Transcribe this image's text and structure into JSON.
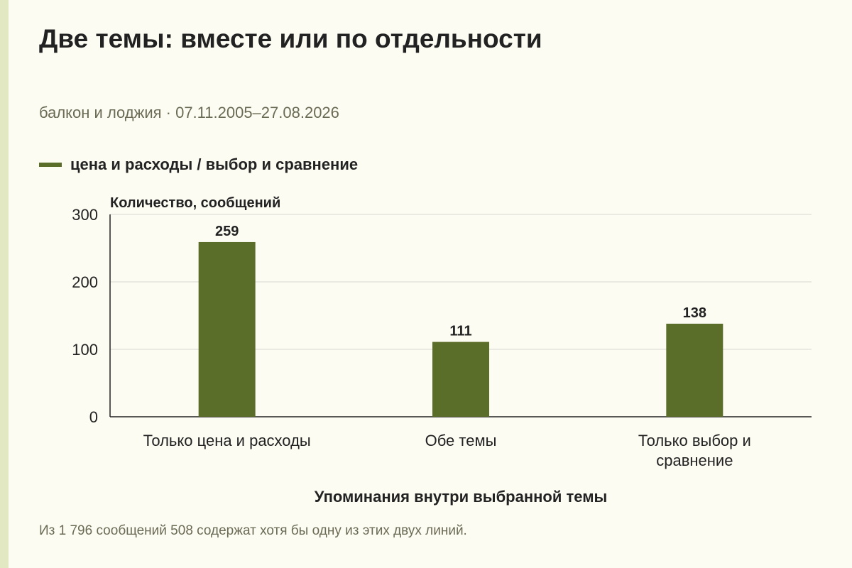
{
  "title": "Две темы: вместе или по отдельности",
  "subtitle": "балкон и лоджия · 07.11.2005–27.08.2026",
  "footnote": "Из 1 796 сообщений 508 содержат хотя бы одну из этих двух линий.",
  "colors": {
    "bar": "#5a6e2a",
    "grid": "#d9d9d0",
    "axis": "#222222",
    "text": "#222222",
    "muted": "#6b6b55",
    "background": "#fdfcf3"
  },
  "chart_data": {
    "type": "bar",
    "legend_position": "top-left",
    "grid": true,
    "ylabel": "Количество, сообщений",
    "xlabel": "Упоминания внутри выбранной темы",
    "ylim": [
      0,
      300
    ],
    "yticks": [
      "0",
      "100",
      "200",
      "300"
    ],
    "categories": [
      [
        "Только цена и расходы"
      ],
      [
        "Обе темы"
      ],
      [
        "Только выбор и",
        "сравнение"
      ]
    ],
    "series": [
      {
        "name": "цена и расходы / выбор и сравнение",
        "values": [
          259,
          111,
          138
        ]
      }
    ]
  }
}
